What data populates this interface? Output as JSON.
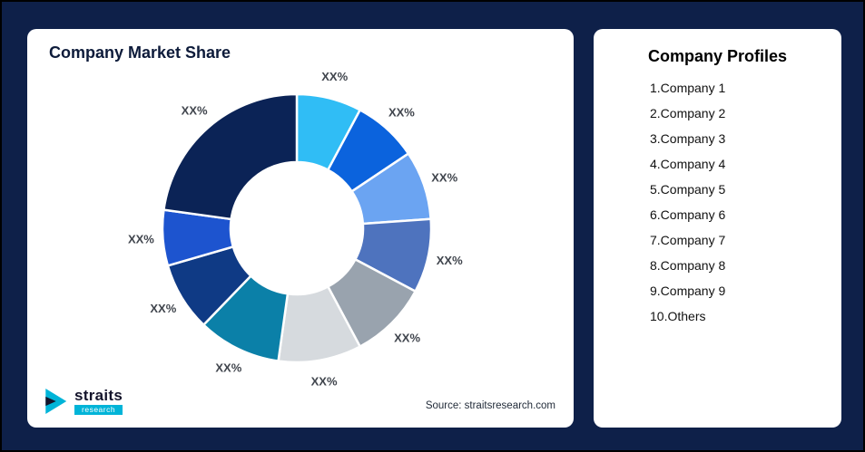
{
  "theme": {
    "background": "#0e2049",
    "card_bg": "#ffffff",
    "title_color": "#0d1b3a",
    "slice_label_color": "#40454d",
    "accent_cyan": "#00b4d8"
  },
  "left_card": {
    "title": "Company Market Share",
    "source": "Source: straitsresearch.com"
  },
  "logo": {
    "name": "straits",
    "sub": "research"
  },
  "right_card": {
    "title": "Company Profiles",
    "items": [
      "1.Company 1",
      "2.Company 2",
      "3.Company 3",
      "4.Company 4",
      "5.Company 5",
      "6.Company 6",
      "7.Company 7",
      "8.Company 8",
      "9.Company 9",
      "10.Others"
    ]
  },
  "chart_data": {
    "type": "pie",
    "subtype": "donut",
    "title": "Company Market Share",
    "legend_position": "right-card list",
    "note": "All slice data labels show placeholder text XX%; slice sizes estimated from arc angles, clockwise from 12 o'clock",
    "segments": [
      {
        "name": "Company 1",
        "label": "XX%",
        "value": 7.8,
        "color": "#30bdf5"
      },
      {
        "name": "Company 2",
        "label": "XX%",
        "value": 7.8,
        "color": "#0b63dd"
      },
      {
        "name": "Company 3",
        "label": "XX%",
        "value": 8.3,
        "color": "#6ba4f2"
      },
      {
        "name": "Company 4",
        "label": "XX%",
        "value": 8.9,
        "color": "#4e73be"
      },
      {
        "name": "Company 5",
        "label": "XX%",
        "value": 9.4,
        "color": "#99a3ae"
      },
      {
        "name": "Company 6",
        "label": "XX%",
        "value": 10.0,
        "color": "#d6dade"
      },
      {
        "name": "Company 7",
        "label": "XX%",
        "value": 10.0,
        "color": "#0b80a8"
      },
      {
        "name": "Company 8",
        "label": "XX%",
        "value": 8.3,
        "color": "#0f3a85"
      },
      {
        "name": "Company 9",
        "label": "XX%",
        "value": 6.7,
        "color": "#1d54cf"
      },
      {
        "name": "Others",
        "label": "XX%",
        "value": 22.8,
        "color": "#0b2356"
      }
    ]
  }
}
